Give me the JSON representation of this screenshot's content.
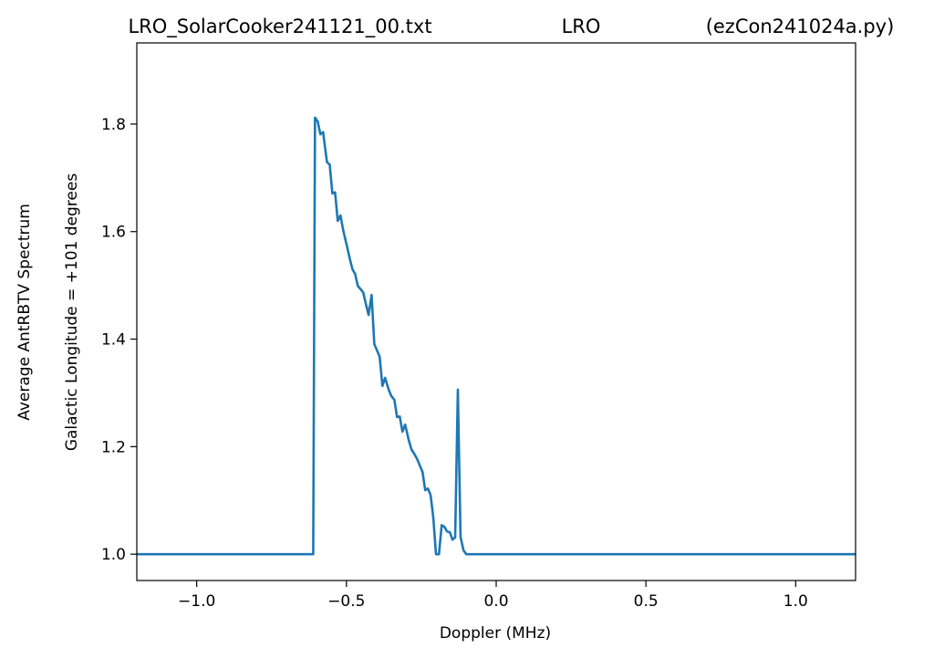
{
  "chart_data": {
    "type": "line",
    "title_parts": [
      "LRO_SolarCooker241121_00.txt",
      "LRO",
      "(ezCon241024a.py)"
    ],
    "xlabel": "Doppler (MHz)",
    "ylabel_lines": [
      "Average AntRBTV Spectrum",
      "Galactic Longitude = +101 degrees"
    ],
    "xlim": [
      -1.2,
      1.2
    ],
    "ylim": [
      0.951,
      1.951
    ],
    "xticks": [
      {
        "value": -1.0,
        "label": "−1.0"
      },
      {
        "value": -0.5,
        "label": "−0.5"
      },
      {
        "value": 0.0,
        "label": "0.0"
      },
      {
        "value": 0.5,
        "label": "0.5"
      },
      {
        "value": 1.0,
        "label": "1.0"
      }
    ],
    "yticks": [
      {
        "value": 1.0,
        "label": "1.0"
      },
      1.2,
      1.4,
      1.6,
      1.8
    ],
    "grid": false,
    "series": [
      {
        "color": "#1f77b4",
        "x": [
          -1.2,
          -0.611,
          -0.605,
          -0.596,
          -0.587,
          -0.578,
          -0.565,
          -0.556,
          -0.547,
          -0.538,
          -0.529,
          -0.52,
          -0.511,
          -0.498,
          -0.489,
          -0.48,
          -0.471,
          -0.462,
          -0.453,
          -0.444,
          -0.435,
          -0.426,
          -0.416,
          -0.407,
          -0.398,
          -0.389,
          -0.38,
          -0.371,
          -0.359,
          -0.35,
          -0.34,
          -0.331,
          -0.322,
          -0.313,
          -0.304,
          -0.292,
          -0.283,
          -0.274,
          -0.264,
          -0.255,
          -0.246,
          -0.237,
          -0.228,
          -0.219,
          -0.21,
          -0.201,
          -0.191,
          -0.182,
          -0.173,
          -0.164,
          -0.155,
          -0.146,
          -0.137,
          -0.128,
          -0.119,
          -0.109,
          -0.1,
          1.2
        ],
        "values": [
          1.0,
          1.0,
          1.812,
          1.805,
          1.781,
          1.785,
          1.729,
          1.725,
          1.671,
          1.673,
          1.62,
          1.63,
          1.603,
          1.572,
          1.55,
          1.53,
          1.521,
          1.499,
          1.493,
          1.487,
          1.465,
          1.445,
          1.482,
          1.391,
          1.379,
          1.367,
          1.313,
          1.328,
          1.306,
          1.294,
          1.287,
          1.255,
          1.256,
          1.228,
          1.241,
          1.212,
          1.195,
          1.187,
          1.177,
          1.165,
          1.153,
          1.119,
          1.122,
          1.11,
          1.068,
          1.0,
          1.0,
          1.054,
          1.051,
          1.042,
          1.041,
          1.027,
          1.031,
          1.306,
          1.032,
          1.007,
          1.0,
          1.0
        ]
      }
    ]
  }
}
